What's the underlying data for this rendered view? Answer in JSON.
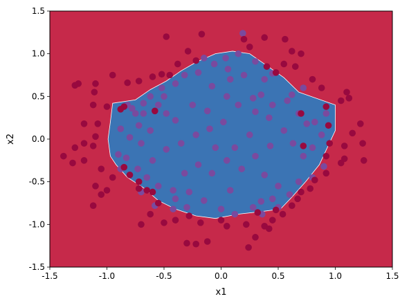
{
  "chart_data": {
    "type": "scatter",
    "title": "",
    "xlabel": "x1",
    "ylabel": "x2",
    "xlim": [
      -1.5,
      1.5
    ],
    "ylim": [
      -1.5,
      1.5
    ],
    "xticks": [
      "-1.5",
      "-1.0",
      "-0.5",
      "0.0",
      "0.5",
      "1.0",
      "1.5"
    ],
    "yticks": [
      "-1.5",
      "-1.0",
      "-0.5",
      "0.0",
      "0.5",
      "1.0",
      "1.5"
    ],
    "grid": false,
    "background_color": "#c6294a",
    "region_color": "#3b74b4",
    "decision_region": {
      "label": "blue region (classifier prediction)",
      "boundary": [
        [
          -0.95,
          0.42
        ],
        [
          -0.75,
          0.46
        ],
        [
          -0.62,
          0.58
        ],
        [
          -0.48,
          0.68
        ],
        [
          -0.35,
          0.8
        ],
        [
          -0.22,
          0.9
        ],
        [
          -0.05,
          1.0
        ],
        [
          0.1,
          1.03
        ],
        [
          0.25,
          1.0
        ],
        [
          0.38,
          0.88
        ],
        [
          0.55,
          0.72
        ],
        [
          0.68,
          0.55
        ],
        [
          0.85,
          0.47
        ],
        [
          1.0,
          0.4
        ],
        [
          1.0,
          0.1
        ],
        [
          0.93,
          -0.1
        ],
        [
          0.86,
          -0.3
        ],
        [
          0.74,
          -0.5
        ],
        [
          0.62,
          -0.68
        ],
        [
          0.52,
          -0.82
        ],
        [
          0.35,
          -0.85
        ],
        [
          0.15,
          -0.88
        ],
        [
          -0.05,
          -0.93
        ],
        [
          -0.22,
          -0.9
        ],
        [
          -0.4,
          -0.82
        ],
        [
          -0.55,
          -0.72
        ],
        [
          -0.68,
          -0.57
        ],
        [
          -0.82,
          -0.45
        ],
        [
          -0.92,
          -0.3
        ],
        [
          -0.97,
          -0.2
        ],
        [
          -0.99,
          0.0
        ],
        [
          -0.97,
          0.2
        ]
      ]
    },
    "series": [
      {
        "color": "#7a4a9e",
        "points": [
          [
            0.19,
            1.24
          ],
          [
            -0.15,
            0.95
          ],
          [
            -0.06,
            0.88
          ],
          [
            0.04,
            0.95
          ],
          [
            0.15,
            1.0
          ],
          [
            0.3,
            0.91
          ],
          [
            0.45,
            0.77
          ],
          [
            0.38,
            0.7
          ],
          [
            0.35,
            0.52
          ],
          [
            0.2,
            0.75
          ],
          [
            0.08,
            0.7
          ],
          [
            -0.08,
            0.62
          ],
          [
            -0.2,
            0.78
          ],
          [
            -0.32,
            0.75
          ],
          [
            -0.4,
            0.65
          ],
          [
            -0.52,
            0.6
          ],
          [
            -0.62,
            0.5
          ],
          [
            -0.68,
            0.42
          ],
          [
            -0.78,
            0.36
          ],
          [
            -0.82,
            0.4
          ],
          [
            -0.75,
            0.3
          ],
          [
            -0.72,
            0.16
          ],
          [
            -0.8,
            0.02
          ],
          [
            -0.7,
            -0.05
          ],
          [
            -0.62,
            0.1
          ],
          [
            -0.55,
            0.4
          ],
          [
            -0.48,
            0.3
          ],
          [
            -0.4,
            0.22
          ],
          [
            -0.25,
            0.4
          ],
          [
            -0.12,
            0.33
          ],
          [
            0.05,
            0.5
          ],
          [
            0.15,
            0.4
          ],
          [
            0.3,
            0.32
          ],
          [
            0.45,
            0.4
          ],
          [
            0.58,
            0.45
          ],
          [
            0.68,
            0.3
          ],
          [
            0.75,
            0.18
          ],
          [
            0.82,
            0.2
          ],
          [
            0.88,
            0.05
          ],
          [
            0.8,
            -0.1
          ],
          [
            0.72,
            -0.2
          ],
          [
            0.63,
            -0.05
          ],
          [
            0.55,
            0.1
          ],
          [
            0.43,
            -0.08
          ],
          [
            0.3,
            -0.2
          ],
          [
            0.18,
            -0.35
          ],
          [
            0.05,
            -0.25
          ],
          [
            -0.08,
            -0.4
          ],
          [
            -0.2,
            -0.3
          ],
          [
            -0.32,
            -0.4
          ],
          [
            -0.42,
            -0.6
          ],
          [
            -0.55,
            -0.55
          ],
          [
            -0.65,
            -0.45
          ],
          [
            -0.73,
            -0.35
          ],
          [
            -0.83,
            -0.22
          ],
          [
            -0.9,
            -0.18
          ],
          [
            -0.88,
            0.12
          ],
          [
            -0.6,
            -0.25
          ],
          [
            -0.48,
            -0.12
          ],
          [
            -0.35,
            -0.05
          ],
          [
            -0.22,
            0.05
          ],
          [
            -0.1,
            0.12
          ],
          [
            0.02,
            0.2
          ],
          [
            0.12,
            -0.1
          ],
          [
            0.25,
            0.05
          ],
          [
            0.38,
            -0.42
          ],
          [
            0.5,
            -0.55
          ],
          [
            0.6,
            -0.65
          ],
          [
            0.45,
            -0.7
          ],
          [
            0.28,
            -0.8
          ],
          [
            0.12,
            -0.88
          ],
          [
            0.0,
            -0.82
          ],
          [
            -0.15,
            -0.72
          ],
          [
            -0.3,
            -0.8
          ],
          [
            -0.42,
            -0.82
          ],
          [
            -0.58,
            -0.78
          ],
          [
            -0.7,
            -0.62
          ],
          [
            0.8,
            -0.45
          ],
          [
            0.9,
            -0.32
          ],
          [
            0.92,
            0.3
          ],
          [
            -0.4,
            -0.7
          ],
          [
            0.35,
            -0.73
          ],
          [
            -0.88,
            -0.35
          ],
          [
            0.06,
            0.82
          ],
          [
            0.28,
            0.48
          ],
          [
            0.62,
            0.52
          ],
          [
            0.72,
            0.6
          ],
          [
            0.08,
            -0.6
          ],
          [
            -0.28,
            -0.62
          ],
          [
            0.5,
            -0.8
          ],
          [
            0.42,
            0.25
          ],
          [
            -0.05,
            -0.1
          ],
          [
            0.68,
            -0.5
          ],
          [
            -0.68,
            0.3
          ],
          [
            0.36,
            -0.88
          ],
          [
            -0.5,
            0.5
          ]
        ]
      },
      {
        "color": "#98093f",
        "points": [
          [
            -0.48,
            1.2
          ],
          [
            -0.17,
            1.23
          ],
          [
            0.38,
            1.19
          ],
          [
            0.2,
            1.17
          ],
          [
            0.56,
            1.17
          ],
          [
            0.62,
            1.03
          ],
          [
            0.7,
            1.0
          ],
          [
            0.25,
            1.08
          ],
          [
            -0.29,
            1.03
          ],
          [
            -0.38,
            0.88
          ],
          [
            -0.52,
            0.76
          ],
          [
            -0.6,
            0.73
          ],
          [
            -0.72,
            0.68
          ],
          [
            -0.82,
            0.66
          ],
          [
            -0.95,
            0.75
          ],
          [
            -1.1,
            0.65
          ],
          [
            -1.11,
            0.55
          ],
          [
            -1.12,
            0.4
          ],
          [
            -1.0,
            0.38
          ],
          [
            -0.85,
            0.38
          ],
          [
            -1.08,
            0.18
          ],
          [
            -1.2,
            0.18
          ],
          [
            -1.1,
            0.03
          ],
          [
            -1.12,
            -0.08
          ],
          [
            -1.2,
            -0.05
          ],
          [
            -1.28,
            -0.1
          ],
          [
            -1.38,
            -0.2
          ],
          [
            -1.3,
            -0.28
          ],
          [
            -1.2,
            -0.25
          ],
          [
            -1.05,
            -0.35
          ],
          [
            -1.1,
            -0.55
          ],
          [
            -1.0,
            -0.6
          ],
          [
            -0.95,
            -0.45
          ],
          [
            -0.85,
            -0.33
          ],
          [
            -0.8,
            -0.42
          ],
          [
            -0.72,
            -0.5
          ],
          [
            -0.65,
            -0.6
          ],
          [
            -0.6,
            -0.62
          ],
          [
            -0.55,
            -0.75
          ],
          [
            -0.62,
            -0.88
          ],
          [
            -0.5,
            -0.98
          ],
          [
            -0.7,
            -1.0
          ],
          [
            -0.4,
            -0.95
          ],
          [
            -0.28,
            -0.9
          ],
          [
            -0.18,
            -0.98
          ],
          [
            -0.3,
            -1.22
          ],
          [
            -0.22,
            -1.23
          ],
          [
            0.05,
            -1.02
          ],
          [
            0.22,
            -1.0
          ],
          [
            0.32,
            -0.86
          ],
          [
            0.38,
            -1.02
          ],
          [
            0.42,
            -1.05
          ],
          [
            0.54,
            -0.88
          ],
          [
            0.62,
            -0.78
          ],
          [
            0.67,
            -0.7
          ],
          [
            0.7,
            -0.62
          ],
          [
            0.78,
            -0.58
          ],
          [
            0.82,
            -0.48
          ],
          [
            0.92,
            -0.4
          ],
          [
            1.05,
            -0.28
          ],
          [
            1.08,
            -0.23
          ],
          [
            0.92,
            -0.2
          ],
          [
            0.95,
            -0.05
          ],
          [
            1.08,
            -0.08
          ],
          [
            1.15,
            0.07
          ],
          [
            1.22,
            0.18
          ],
          [
            1.24,
            -0.05
          ],
          [
            1.25,
            -0.25
          ],
          [
            0.94,
            0.16
          ],
          [
            0.92,
            0.38
          ],
          [
            1.05,
            0.45
          ],
          [
            1.1,
            0.55
          ],
          [
            1.12,
            0.48
          ],
          [
            0.88,
            0.6
          ],
          [
            0.8,
            0.7
          ],
          [
            0.65,
            0.85
          ],
          [
            0.55,
            0.88
          ],
          [
            -1.25,
            0.65
          ],
          [
            -1.28,
            0.63
          ],
          [
            -1.12,
            -0.78
          ],
          [
            -1.05,
            -0.65
          ],
          [
            -0.12,
            -1.2
          ],
          [
            0.3,
            -1.15
          ],
          [
            0.24,
            -1.27
          ],
          [
            0.0,
            -0.95
          ],
          [
            -0.88,
            0.35
          ],
          [
            0.7,
            0.3
          ],
          [
            0.72,
            -0.08
          ],
          [
            -0.45,
            0.75
          ],
          [
            0.48,
            -0.83
          ],
          [
            0.45,
            -0.95
          ],
          [
            -0.72,
            -0.58
          ],
          [
            -0.58,
            0.33
          ],
          [
            0.48,
            0.78
          ],
          [
            0.4,
            0.85
          ],
          [
            -0.22,
            0.92
          ]
        ]
      }
    ]
  }
}
